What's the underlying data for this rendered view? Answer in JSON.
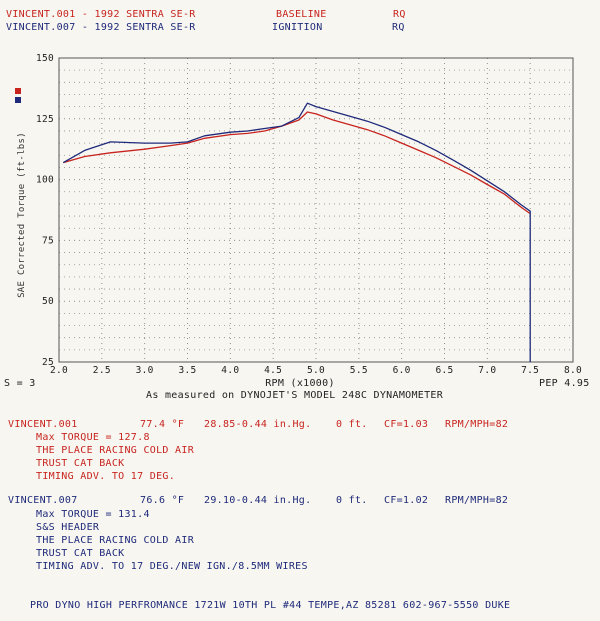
{
  "header": {
    "run1": {
      "name": "VINCENT.001",
      "sep": " - ",
      "car": "1992 SENTRA SE-R",
      "mode": "BASELINE",
      "units": "RQ"
    },
    "run2": {
      "name": "VINCENT.007",
      "sep": " - ",
      "car": "1992 SENTRA SE-R",
      "mode": "IGNITION",
      "units": "RQ"
    }
  },
  "colors": {
    "run1": "#c8241f",
    "run2": "#1f2a7a",
    "grid": "#8f8f8f",
    "axis": "#555555"
  },
  "footer_left": "S = 3",
  "footer_right": "PEP 4.95",
  "caption": "As measured on DYNOJET'S MODEL 248C DYNAMOMETER",
  "runs": [
    {
      "name": "VINCENT.001",
      "temp": "77.4 °F",
      "baro": "28.85-0.44 in.Hg.",
      "alt": "0 ft.",
      "cf": "CF=1.03",
      "rpm_mph": "RPM/MPH=82",
      "notes": [
        "Max TORQUE = 127.8",
        "THE PLACE RACING COLD AIR",
        "TRUST CAT BACK",
        "TIMING ADV. TO 17 DEG."
      ]
    },
    {
      "name": "VINCENT.007",
      "temp": "76.6 °F",
      "baro": "29.10-0.44 in.Hg.",
      "alt": "0 ft.",
      "cf": "CF=1.02",
      "rpm_mph": "RPM/MPH=82",
      "notes": [
        "Max TORQUE = 131.4",
        "S&S HEADER",
        "THE PLACE RACING COLD AIR",
        "TRUST CAT BACK",
        "TIMING ADV. TO 17 DEG./NEW IGN./8.5MM WIRES"
      ]
    }
  ],
  "shop": "PRO DYNO HIGH PERFROMANCE 1721W 10TH PL #44 TEMPE,AZ 85281 602-967-5550 DUKE",
  "chart_data": {
    "type": "line",
    "xlabel": "RPM (x1000)",
    "ylabel": "SAE Corrected Torque (ft-lbs)",
    "xlim": [
      2.0,
      8.0
    ],
    "ylim": [
      25,
      150
    ],
    "xticks": [
      "2.0",
      "2.5",
      "3.0",
      "3.5",
      "4.0",
      "4.5",
      "5.0",
      "5.5",
      "6.0",
      "6.5",
      "7.0",
      "7.5",
      "8.0"
    ],
    "yticks": [
      "25",
      "50",
      "75",
      "100",
      "125",
      "150"
    ],
    "grid": true,
    "legend": "left",
    "series": [
      {
        "name": "VINCENT.001",
        "color": "#c8241f",
        "x": [
          2.05,
          2.3,
          2.6,
          3.0,
          3.3,
          3.5,
          3.7,
          4.0,
          4.2,
          4.4,
          4.6,
          4.8,
          4.9,
          5.0,
          5.2,
          5.4,
          5.6,
          5.8,
          6.0,
          6.2,
          6.4,
          6.6,
          6.8,
          7.0,
          7.2,
          7.4,
          7.5
        ],
        "y": [
          107,
          109.5,
          111,
          112.5,
          114,
          115,
          117,
          118.5,
          119,
          120,
          122,
          124.5,
          127.8,
          127,
          124.5,
          122.5,
          120.5,
          118,
          115,
          112,
          109,
          105.5,
          102,
          98,
          94,
          88.5,
          86
        ]
      },
      {
        "name": "VINCENT.007",
        "color": "#1f2a7a",
        "x": [
          2.05,
          2.3,
          2.6,
          3.0,
          3.3,
          3.5,
          3.7,
          4.0,
          4.2,
          4.4,
          4.6,
          4.8,
          4.9,
          5.0,
          5.2,
          5.4,
          5.6,
          5.8,
          6.0,
          6.2,
          6.4,
          6.6,
          6.8,
          7.0,
          7.2,
          7.4,
          7.5,
          7.5
        ],
        "y": [
          107,
          112,
          115.5,
          115,
          115,
          115.5,
          118,
          119.5,
          120,
          121,
          122,
          125.5,
          131.4,
          130,
          128,
          126,
          124,
          121.5,
          118.5,
          115.5,
          112,
          108,
          104,
          99.5,
          95,
          89.5,
          87,
          25
        ]
      }
    ]
  }
}
